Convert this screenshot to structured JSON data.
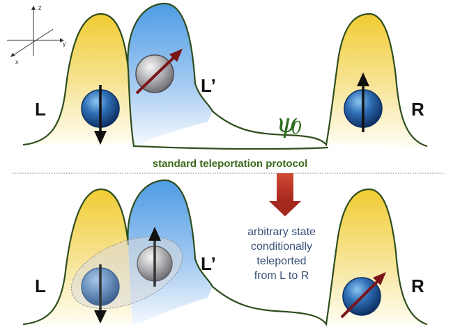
{
  "axes": {
    "x": "x",
    "y": "y",
    "z": "z"
  },
  "top_panel": {
    "left_well": "L",
    "middle_well": "L’",
    "right_well": "R",
    "state_symbol": "ψ",
    "state_subscript": "0"
  },
  "protocol_label": "standard teleportation protocol",
  "bottom_panel": {
    "left_well": "L",
    "middle_well": "L’",
    "right_well": "R",
    "caption_lines": [
      "arbitrary state",
      "conditionally",
      "teleported",
      "from L to R"
    ]
  },
  "colors": {
    "yellow_well": "#f2d248",
    "blue_well": "#5aa3e6",
    "well_outline": "#2e4d1e",
    "arrow_red": "#7a1418",
    "process_arrow": "#c0392b"
  }
}
